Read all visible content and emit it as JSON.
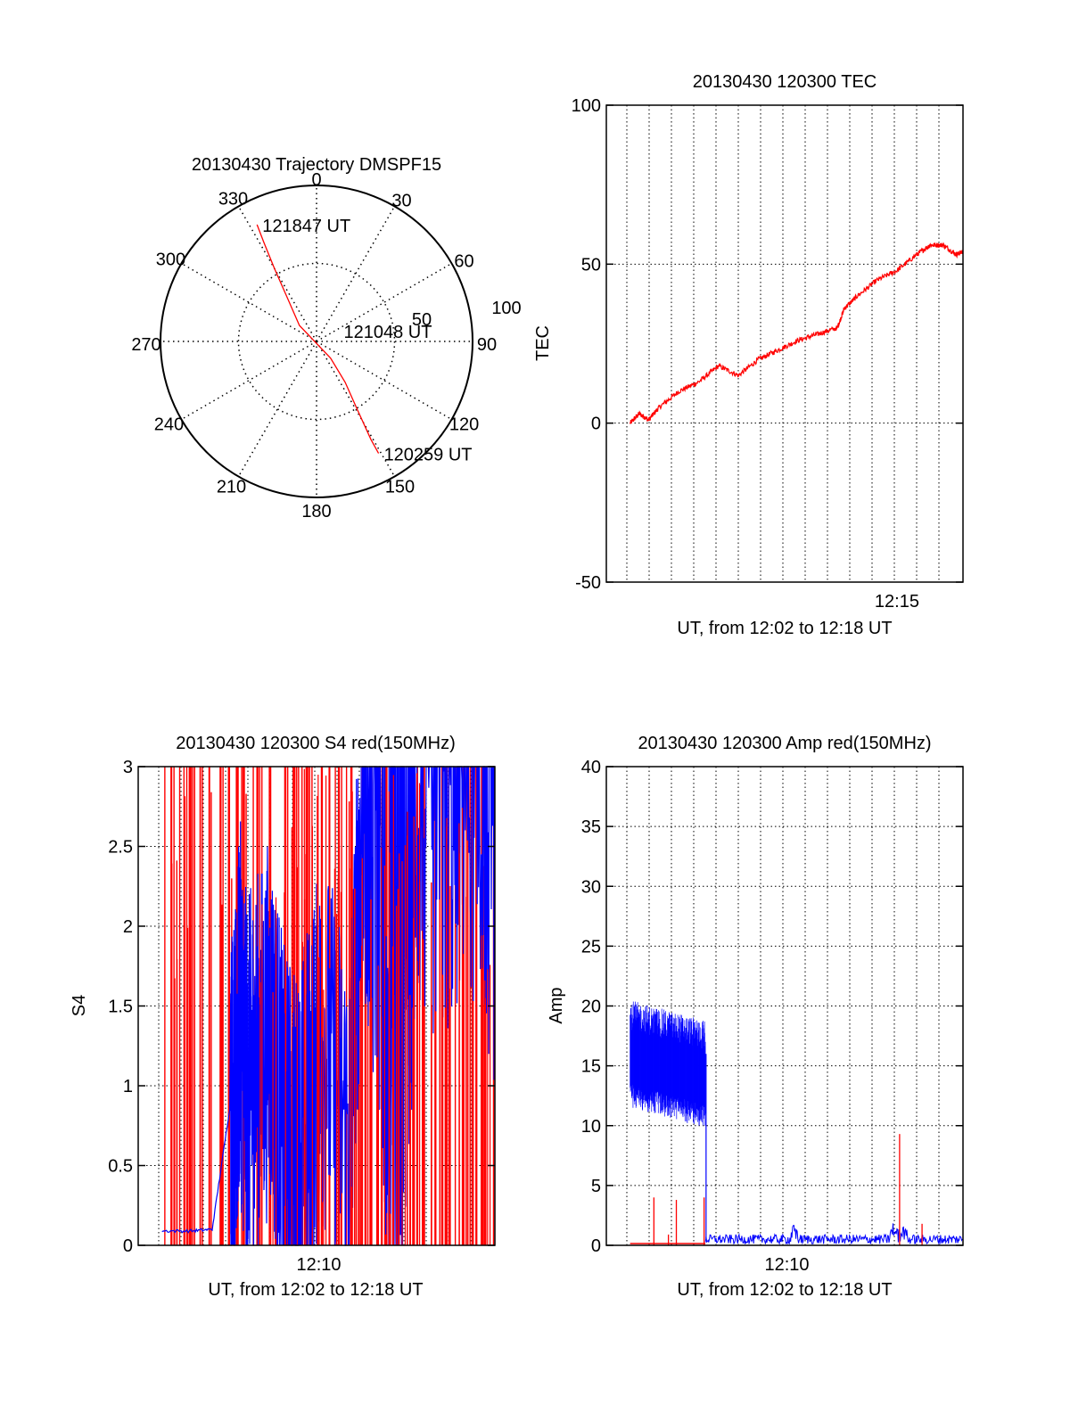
{
  "colors": {
    "red": "#ff0000",
    "blue": "#0000ff",
    "axis": "#000000",
    "grid": "#000000"
  },
  "chart_data": [
    {
      "id": "trajectory",
      "type": "polar",
      "title": "20130430 Trajectory DMSPF15",
      "azimuth_labels": [
        "0",
        "30",
        "60",
        "90",
        "120",
        "150",
        "180",
        "210",
        "240",
        "270",
        "300",
        "330"
      ],
      "azimuths": [
        0,
        30,
        60,
        90,
        120,
        150,
        180,
        210,
        240,
        270,
        300,
        330
      ],
      "radial_max": 100,
      "radial_rings": [
        50,
        100
      ],
      "radial_ring_labels": [
        "50",
        "100"
      ],
      "track": {
        "color": "red",
        "points": [
          {
            "az": 333,
            "r": 84
          },
          {
            "az": 332,
            "r": 72
          },
          {
            "az": 330,
            "r": 54
          },
          {
            "az": 326,
            "r": 33
          },
          {
            "az": 313,
            "r": 15
          },
          {
            "az": 140,
            "r": 14
          },
          {
            "az": 145,
            "r": 32
          },
          {
            "az": 149,
            "r": 50
          },
          {
            "az": 151,
            "r": 72
          },
          {
            "az": 151,
            "r": 82
          }
        ]
      },
      "annotations": [
        {
          "text": "121847 UT",
          "az": 333,
          "r": 84
        },
        {
          "text": "121048 UT",
          "az": 90,
          "r": 14
        },
        {
          "text": "120259 UT",
          "az": 151,
          "r": 82
        }
      ]
    },
    {
      "id": "tec",
      "type": "line",
      "title": "20130430 120300 TEC",
      "ylabel": "TEC",
      "xlabel": "UT, from 12:02 to 12:18 UT",
      "xlim": [
        12.03,
        12.3
      ],
      "ylim": [
        -50,
        100
      ],
      "yticks": [
        -50,
        0,
        50,
        100
      ],
      "xtick_labels": [
        {
          "x": 12.25,
          "label": "12:15"
        }
      ],
      "xgrid_count": 15,
      "ygrid": [
        0,
        50
      ],
      "series": [
        {
          "color": "red",
          "x": [
            12.048,
            12.055,
            12.062,
            12.07,
            12.085,
            12.1,
            12.115,
            12.13,
            12.145,
            12.16,
            12.175,
            12.19,
            12.205,
            12.21,
            12.22,
            12.235,
            12.25,
            12.265,
            12.275,
            12.285,
            12.295,
            12.3
          ],
          "y": [
            0,
            3,
            1,
            5,
            10,
            13,
            18,
            15,
            20,
            23,
            26,
            28,
            30,
            36,
            40,
            45,
            48,
            53,
            56,
            56,
            53,
            54
          ]
        }
      ]
    },
    {
      "id": "s4",
      "type": "line",
      "title": "20130430 120300 S4 red(150MHz)",
      "ylabel": "S4",
      "xlabel": "UT, from 12:02 to 12:18 UT",
      "xlim": [
        12.03,
        12.3
      ],
      "ylim": [
        0,
        3
      ],
      "yticks": [
        0,
        0.5,
        1,
        1.5,
        2,
        2.5,
        3
      ],
      "ytick_labels": [
        "0",
        "0.5",
        "1",
        "1.5",
        "2",
        "2.5",
        "3"
      ],
      "xtick_labels": [
        {
          "x": 12.1667,
          "label": "12:10"
        }
      ],
      "xgrid_count": 15,
      "ygrid": [
        0.5,
        1,
        1.5,
        2,
        2.5
      ],
      "series": [
        {
          "color": "red",
          "description_only": false,
          "x": [
            12.05,
            12.06,
            12.07,
            12.08,
            12.09,
            12.1,
            12.11
          ],
          "y": [
            1.5,
            3,
            1.5,
            3,
            3,
            3,
            3
          ]
        },
        {
          "color": "blue",
          "x": [
            12.048,
            12.07,
            12.086,
            12.1,
            12.103,
            12.107,
            12.112,
            12.118,
            12.13,
            12.14,
            12.15,
            12.16,
            12.17,
            12.19,
            12.2,
            12.21,
            12.222,
            12.23,
            12.24,
            12.26,
            12.28,
            12.3
          ],
          "y": [
            0.09,
            0.09,
            0.1,
            0.9,
            0.8,
            1.5,
            1.0,
            1.1,
            1.4,
            0.7,
            0.55,
            0.9,
            1.3,
            0.7,
            2.8,
            2.1,
            0.75,
            0.7,
            2.6,
            2.4,
            2.8,
            2.2
          ]
        }
      ]
    },
    {
      "id": "amp",
      "type": "line",
      "title": "20130430 120300 Amp red(150MHz)",
      "ylabel": "Amp",
      "xlabel": "UT, from 12:02 to 12:18 UT",
      "xlim": [
        12.03,
        12.3
      ],
      "ylim": [
        0,
        40
      ],
      "yticks": [
        0,
        5,
        10,
        15,
        20,
        25,
        30,
        35,
        40
      ],
      "xtick_labels": [
        {
          "x": 12.1667,
          "label": "12:10"
        }
      ],
      "xgrid_count": 15,
      "ygrid": [
        5,
        10,
        15,
        20,
        25,
        30,
        35
      ],
      "series": [
        {
          "color": "blue",
          "x": [
            12.048,
            12.06,
            12.07,
            12.08,
            12.09,
            12.105,
            12.106,
            12.13,
            12.16,
            12.2,
            12.24,
            12.25,
            12.26,
            12.3
          ],
          "y": [
            16.5,
            16,
            15.5,
            15,
            14.5,
            14.5,
            0.8,
            0.5,
            0.8,
            0.4,
            0.4,
            1.3,
            0.6,
            0.3
          ]
        },
        {
          "color": "red",
          "x": [
            12.048,
            12.066,
            12.072,
            12.082,
            12.09,
            12.1,
            12.105,
            12.205,
            12.25,
            12.26
          ],
          "y": [
            0.1,
            0.2,
            4,
            0.2,
            3.8,
            0.2,
            4,
            1.5,
            9.3,
            1.8
          ]
        }
      ]
    }
  ]
}
